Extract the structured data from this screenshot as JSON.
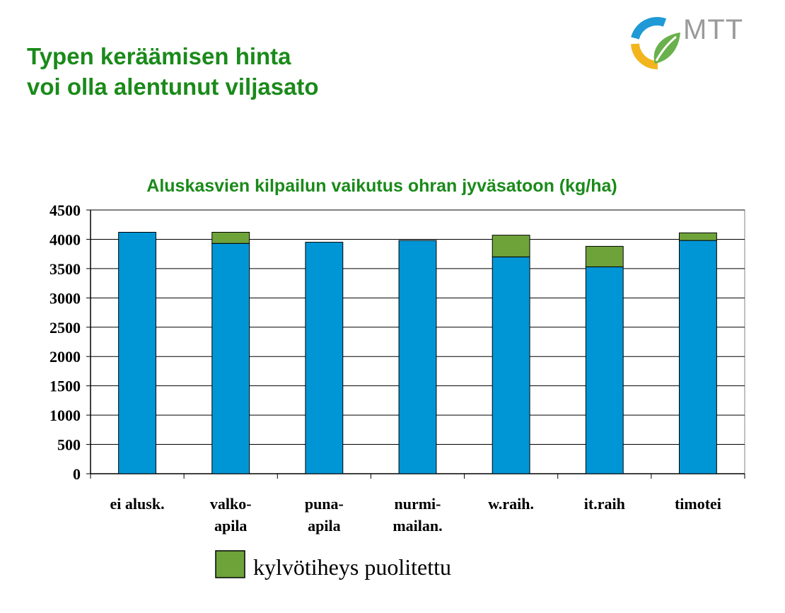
{
  "page": {
    "title_line1": "Typen keräämisen hinta",
    "title_line2": "voi olla alentunut viljasato"
  },
  "logo": {
    "text": "MTT"
  },
  "colors": {
    "title": "#1a8a1a",
    "base": "#0096d6",
    "extra": "#6ea33a",
    "logo_blue": "#1f9ad6",
    "logo_green": "#6ab04c",
    "logo_yellow": "#f2b51d"
  },
  "chart_data": {
    "type": "bar",
    "stacked": true,
    "title": "Aluskasvien kilpailun vaikutus ohran jyväsatoon (kg/ha)",
    "categories": [
      [
        "ei alusk."
      ],
      [
        "valko-",
        "apila"
      ],
      [
        "puna-",
        "apila"
      ],
      [
        "nurmi-",
        "mailan."
      ],
      [
        "w.raih."
      ],
      [
        "it.raih"
      ],
      [
        "timotei"
      ]
    ],
    "series": [
      {
        "color": "#0096d6",
        "values": [
          4120,
          3930,
          3950,
          3980,
          3700,
          3530,
          3980
        ]
      },
      {
        "name": "kylvötiheys puolitettu",
        "color": "#6ea33a",
        "values": [
          0,
          190,
          0,
          0,
          370,
          350,
          130
        ]
      }
    ],
    "ylim": [
      0,
      4500
    ],
    "yticks": [
      0,
      500,
      1000,
      1500,
      2000,
      2500,
      3000,
      3500,
      4000,
      4500
    ],
    "grid": true,
    "legend": "bottom"
  }
}
